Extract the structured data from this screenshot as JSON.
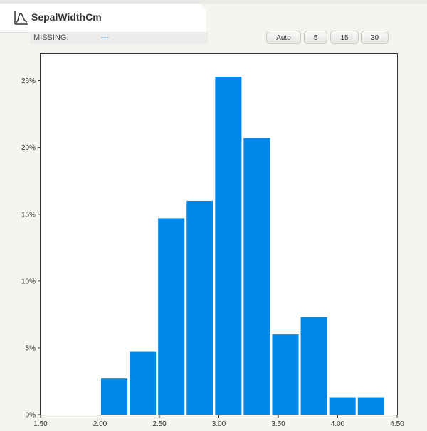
{
  "header": {
    "title": "SepalWidthCm",
    "missing_label": "MISSING:",
    "missing_value": "---"
  },
  "bin_buttons": [
    "Auto",
    "5",
    "15",
    "30"
  ],
  "colors": {
    "bar": "#0087ea",
    "accent": "#1b7fe0"
  },
  "chart_data": {
    "type": "bar",
    "title": "",
    "xlabel": "",
    "ylabel": "",
    "bins": [
      {
        "x0": 2.0,
        "x1": 2.24,
        "value": 2.7
      },
      {
        "x0": 2.24,
        "x1": 2.48,
        "value": 4.7
      },
      {
        "x0": 2.48,
        "x1": 2.72,
        "value": 14.7
      },
      {
        "x0": 2.72,
        "x1": 2.96,
        "value": 16.0
      },
      {
        "x0": 2.96,
        "x1": 3.2,
        "value": 25.3
      },
      {
        "x0": 3.2,
        "x1": 3.44,
        "value": 20.7
      },
      {
        "x0": 3.44,
        "x1": 3.68,
        "value": 6.0
      },
      {
        "x0": 3.68,
        "x1": 3.92,
        "value": 7.3
      },
      {
        "x0": 3.92,
        "x1": 4.16,
        "value": 1.3
      },
      {
        "x0": 4.16,
        "x1": 4.4,
        "value": 1.3
      }
    ],
    "xlim": [
      1.5,
      4.5
    ],
    "ylim": [
      0,
      27
    ],
    "x_ticks": [
      "1.50",
      "2.00",
      "2.50",
      "3.00",
      "3.50",
      "4.00",
      "4.50"
    ],
    "x_tick_values": [
      1.5,
      2.0,
      2.5,
      3.0,
      3.5,
      4.0,
      4.5
    ],
    "y_ticks": [
      "0%",
      "5%",
      "10%",
      "15%",
      "20%",
      "25%"
    ],
    "y_tick_values": [
      0,
      5,
      10,
      15,
      20,
      25
    ],
    "grid": false
  }
}
